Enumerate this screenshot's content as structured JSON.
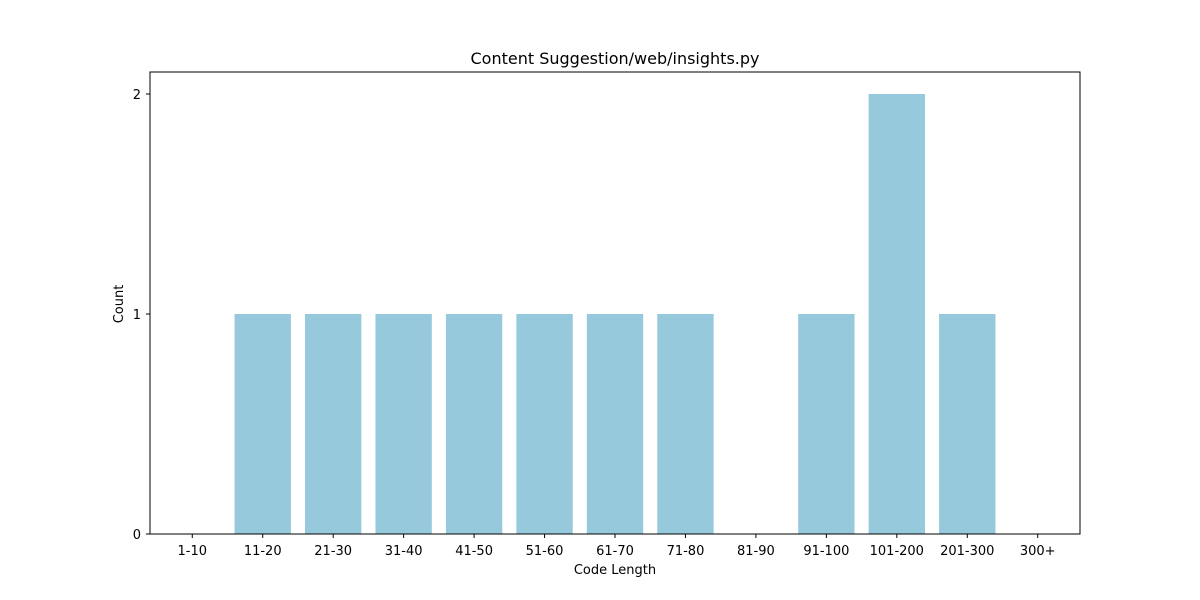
{
  "chart_data": {
    "type": "bar",
    "title": "Content Suggestion/web/insights.py",
    "xlabel": "Code Length",
    "ylabel": "Count",
    "categories": [
      "1-10",
      "11-20",
      "21-30",
      "31-40",
      "41-50",
      "51-60",
      "61-70",
      "71-80",
      "81-90",
      "91-100",
      "101-200",
      "201-300",
      "300+"
    ],
    "values": [
      0,
      1,
      1,
      1,
      1,
      1,
      1,
      1,
      0,
      1,
      2,
      1,
      0
    ],
    "yticks": [
      "0",
      "1",
      "2"
    ],
    "ylim": [
      0,
      2.1
    ],
    "grid": false,
    "legend": "none",
    "bar_color": "#96c9dc"
  }
}
